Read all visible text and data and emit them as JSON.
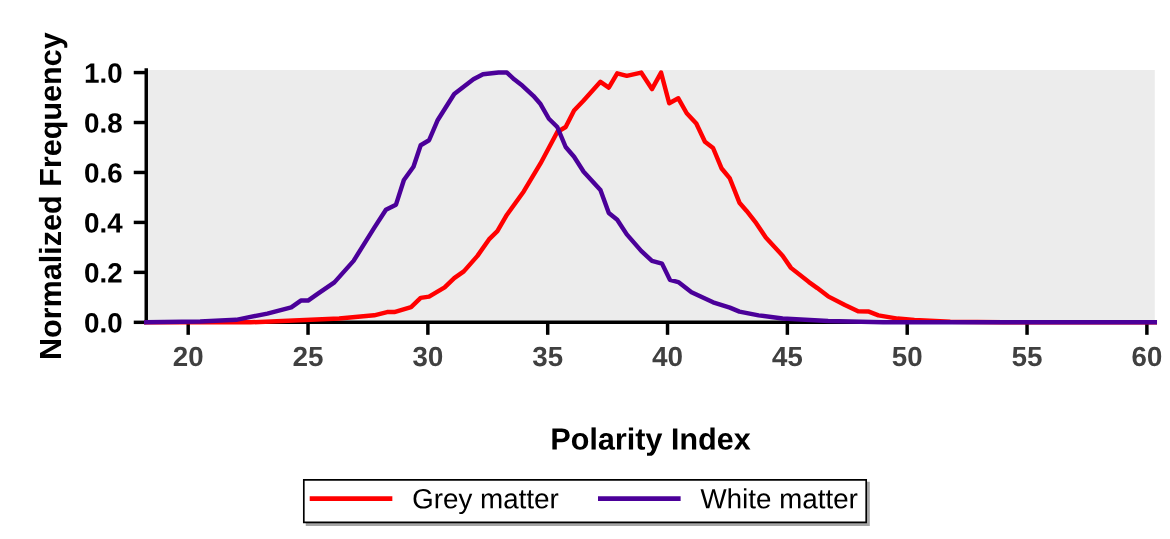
{
  "chart_data": {
    "type": "line",
    "xlabel": "Polarity Index",
    "ylabel": "Normalized Frequency",
    "xlim": [
      18.25,
      60.33
    ],
    "xticks": [
      20,
      25,
      30,
      35,
      40,
      45,
      50,
      55,
      60
    ],
    "ylim": [
      0,
      1.01
    ],
    "yticks": [
      {
        "value": 0,
        "label": "0.0"
      },
      {
        "value": 0.2,
        "label": "0.2"
      },
      {
        "value": 0.4,
        "label": "0.4"
      },
      {
        "value": 0.6,
        "label": "0.6"
      },
      {
        "value": 0.8,
        "label": "0.8"
      },
      {
        "value": 1.0,
        "label": "1.0"
      }
    ],
    "grid": false,
    "legend": "bottom",
    "marker": "none",
    "line_style": "solid",
    "series": [
      {
        "name": "Grey matter",
        "color": "#ff0000",
        "x": [
          18.25,
          22.6,
          26.3,
          27.76,
          28.3,
          28.6,
          29.3,
          29.7,
          30.05,
          30.7,
          31.1,
          31.5,
          32.07,
          32.55,
          32.9,
          33.3,
          34.0,
          34.7,
          35.4,
          35.75,
          36.1,
          36.5,
          37.2,
          37.55,
          37.9,
          38.3,
          38.9,
          39.35,
          39.73,
          40.07,
          40.45,
          40.8,
          41.2,
          41.56,
          41.9,
          42.25,
          42.6,
          43.0,
          43.3,
          43.7,
          44.1,
          44.8,
          45.15,
          45.9,
          46.25,
          46.7,
          47.4,
          47.95,
          48.4,
          48.8,
          49.6,
          50.3,
          51.8,
          54.0,
          60.33
        ],
        "values": [
          0,
          0,
          0.015,
          0.028,
          0.041,
          0.041,
          0.061,
          0.098,
          0.103,
          0.14,
          0.177,
          0.204,
          0.266,
          0.332,
          0.365,
          0.431,
          0.524,
          0.636,
          0.762,
          0.782,
          0.848,
          0.888,
          0.963,
          0.94,
          0.997,
          0.987,
          1.0,
          0.934,
          1.0,
          0.877,
          0.897,
          0.837,
          0.796,
          0.723,
          0.698,
          0.617,
          0.576,
          0.479,
          0.446,
          0.397,
          0.34,
          0.267,
          0.218,
          0.161,
          0.137,
          0.104,
          0.069,
          0.044,
          0.043,
          0.028,
          0.015,
          0.009,
          0.002,
          0,
          0
        ]
      },
      {
        "name": "White matter",
        "color": "#4b0099",
        "x": [
          18.25,
          20.5,
          22.0,
          23.3,
          24.3,
          24.7,
          25.0,
          25.4,
          26.1,
          26.9,
          27.76,
          28.25,
          28.67,
          29.0,
          29.4,
          29.7,
          30.05,
          30.4,
          31.1,
          31.9,
          32.3,
          32.95,
          33.3,
          33.6,
          33.95,
          34.4,
          34.7,
          35.05,
          35.4,
          35.75,
          36.1,
          36.5,
          37.2,
          37.55,
          37.9,
          38.3,
          38.9,
          39.35,
          39.77,
          40.1,
          40.45,
          41.0,
          41.9,
          42.6,
          43.0,
          43.8,
          44.8,
          46.7,
          49.0,
          60.33
        ],
        "values": [
          0,
          0.003,
          0.01,
          0.035,
          0.06,
          0.087,
          0.087,
          0.114,
          0.16,
          0.246,
          0.378,
          0.451,
          0.471,
          0.57,
          0.623,
          0.709,
          0.729,
          0.808,
          0.914,
          0.973,
          0.993,
          1.0,
          1.0,
          0.973,
          0.947,
          0.907,
          0.874,
          0.815,
          0.782,
          0.702,
          0.663,
          0.603,
          0.53,
          0.438,
          0.411,
          0.352,
          0.286,
          0.246,
          0.235,
          0.17,
          0.161,
          0.12,
          0.08,
          0.059,
          0.043,
          0.028,
          0.015,
          0.005,
          0,
          0
        ]
      }
    ]
  }
}
